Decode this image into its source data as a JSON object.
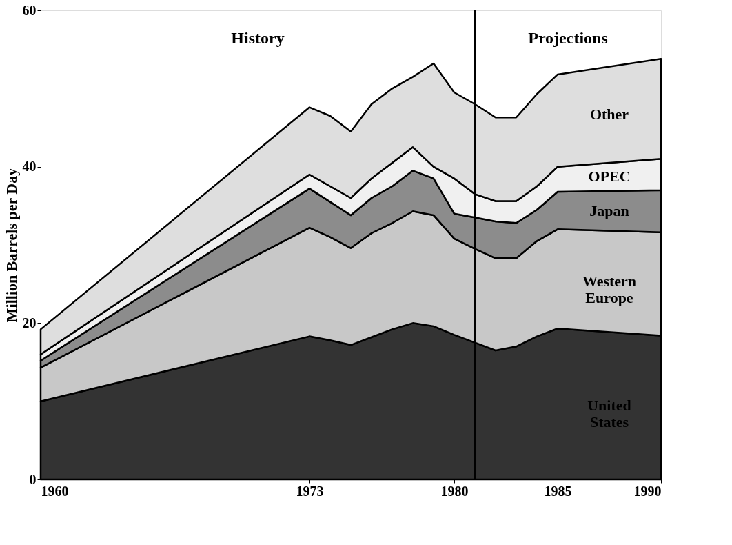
{
  "chart_data": {
    "type": "area",
    "stacked": true,
    "ylabel": "Million Barrels per Day",
    "x": [
      1960,
      1973,
      1974,
      1975,
      1976,
      1977,
      1978,
      1979,
      1980,
      1981,
      1982,
      1983,
      1984,
      1985,
      1990
    ],
    "series": [
      {
        "name": "United States",
        "color": "#333333",
        "values": [
          10,
          18.3,
          17.8,
          17.2,
          18.2,
          19.2,
          20,
          19.6,
          18.5,
          17.5,
          16.5,
          17,
          18.3,
          19.3,
          18.4
        ]
      },
      {
        "name": "Western Europe",
        "color": "#c8c8c8",
        "values": [
          4.3,
          13.9,
          13.2,
          12.4,
          13.3,
          13.6,
          14.3,
          14.2,
          12.3,
          12,
          11.8,
          11.3,
          12.2,
          12.7,
          13.2
        ]
      },
      {
        "name": "Japan",
        "color": "#8c8c8c",
        "values": [
          0.9,
          5,
          4.5,
          4.2,
          4.5,
          4.7,
          5.2,
          4.7,
          3.2,
          4,
          4.7,
          4.5,
          4,
          4.8,
          5.4
        ]
      },
      {
        "name": "OPEC",
        "color": "#f0f0f0",
        "values": [
          0.8,
          1.8,
          2,
          2.2,
          2.5,
          3,
          3,
          1.5,
          4.5,
          3,
          2.6,
          2.8,
          3,
          3.2,
          4
        ]
      },
      {
        "name": "Other",
        "color": "#dedede",
        "values": [
          3.2,
          8.6,
          9,
          8.5,
          9.5,
          9.5,
          9,
          13.2,
          11,
          11.5,
          10.7,
          10.7,
          11.8,
          11.8,
          12.8
        ]
      }
    ],
    "xlim": [
      1960,
      1990
    ],
    "xticks": [
      1960,
      1973,
      1980,
      1985,
      1990
    ],
    "ylim": [
      0,
      60
    ],
    "yticks": [
      0,
      20,
      40,
      60
    ],
    "grid": false,
    "legend": false,
    "ref_lines": [
      {
        "axis": "x",
        "value": 1981,
        "color": "#000000"
      }
    ],
    "annotations": [
      "History",
      "Projections"
    ]
  }
}
